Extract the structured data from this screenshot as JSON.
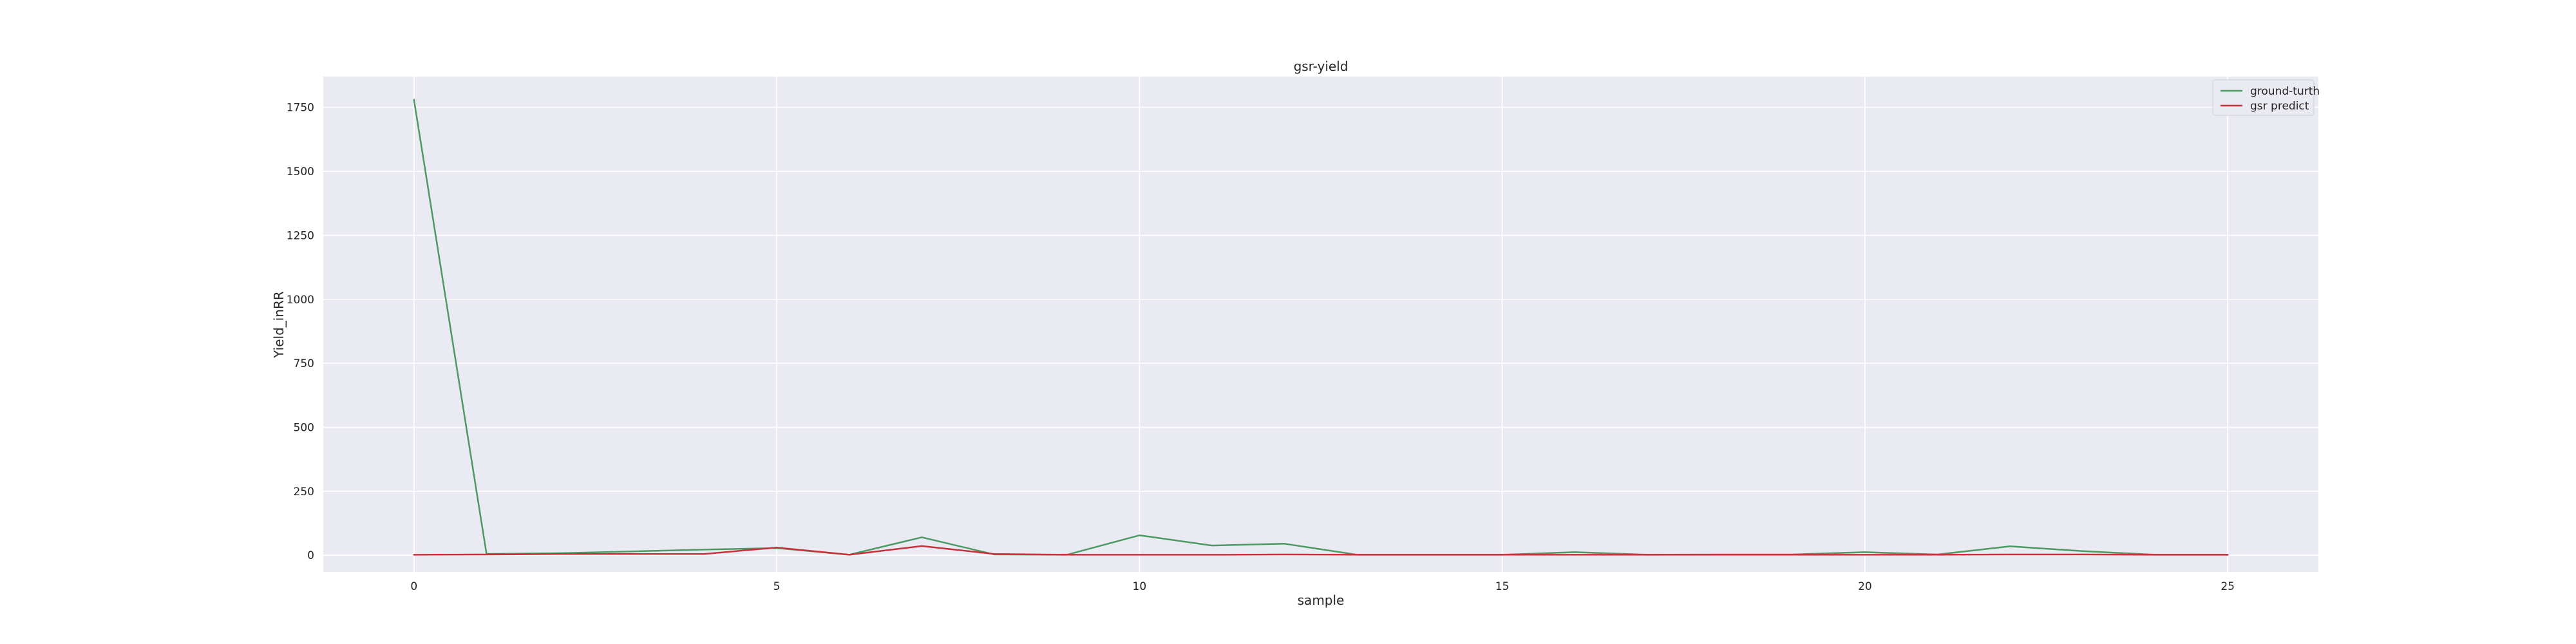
{
  "chart_data": {
    "type": "line",
    "title": "gsr-yield",
    "xlabel": "sample",
    "ylabel": "Yield_inRR",
    "x": [
      0,
      1,
      2,
      3,
      4,
      5,
      6,
      7,
      8,
      9,
      10,
      11,
      12,
      13,
      14,
      15,
      16,
      17,
      18,
      19,
      20,
      21,
      22,
      23,
      24,
      25
    ],
    "xlim": [
      -1.25,
      26.25
    ],
    "ylim": [
      -65,
      1870
    ],
    "xticks": [
      0,
      5,
      10,
      15,
      20,
      25
    ],
    "yticks": [
      0,
      250,
      500,
      750,
      1000,
      1250,
      1500,
      1750
    ],
    "grid": true,
    "legend_position": "top-right",
    "series": [
      {
        "name": "ground-turth",
        "color": "#4c9a63",
        "values": [
          1780,
          5,
          8,
          15,
          22,
          28,
          2,
          70,
          3,
          2,
          78,
          38,
          45,
          2,
          2,
          2,
          12,
          2,
          3,
          3,
          12,
          3,
          35,
          16,
          2,
          2
        ]
      },
      {
        "name": "gsr predict",
        "color": "#c9303c",
        "values": [
          2,
          3,
          5,
          5,
          5,
          30,
          2,
          36,
          5,
          2,
          2,
          2,
          3,
          2,
          2,
          2,
          2,
          2,
          2,
          2,
          2,
          2,
          3,
          3,
          2,
          2
        ]
      }
    ]
  }
}
